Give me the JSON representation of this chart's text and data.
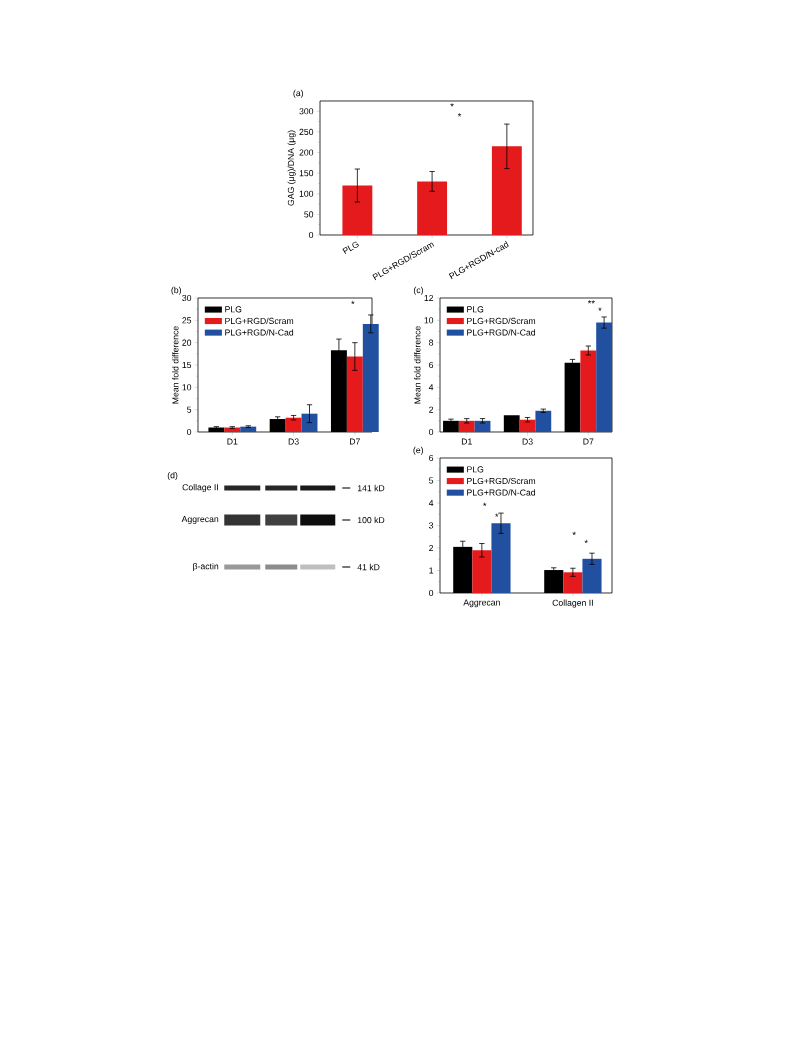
{
  "chart_data": [
    {
      "type": "bar",
      "title": "(a)",
      "ylabel": "GAG (μg)/DNA (μg)",
      "categories": [
        "PLG",
        "PLG+RGD/Scram",
        "PLG+RGD/N-cad"
      ],
      "values": [
        120,
        130,
        215
      ],
      "errors": [
        40,
        24,
        54
      ],
      "color": "#e41a1c",
      "ylim": [
        0,
        325
      ],
      "yticks": [
        0,
        50,
        100,
        150,
        200,
        250,
        300
      ],
      "annotations": [
        "*",
        "*"
      ]
    },
    {
      "type": "bar",
      "title": "(b)",
      "ylabel": "Mean fold difference",
      "categories": [
        "D1",
        "D3",
        "D7"
      ],
      "series": [
        {
          "name": "PLG",
          "color": "#000000",
          "values": [
            1.0,
            2.9,
            18.3
          ],
          "errors": [
            0.2,
            0.5,
            2.5
          ]
        },
        {
          "name": "PLG+RGD/Scram",
          "color": "#e41a1c",
          "values": [
            1.0,
            3.2,
            16.9
          ],
          "errors": [
            0.2,
            0.5,
            3.1
          ]
        },
        {
          "name": "PLG+RGD/N-Cad",
          "color": "#2150a0",
          "values": [
            1.2,
            4.1,
            24.2
          ],
          "errors": [
            0.2,
            2.0,
            2.0
          ]
        }
      ],
      "ylim": [
        0,
        30
      ],
      "yticks": [
        0,
        5,
        10,
        15,
        20,
        25,
        30
      ],
      "legend": "top left",
      "annotations": [
        "*"
      ]
    },
    {
      "type": "bar",
      "title": "(c)",
      "ylabel": "Mean fold difference",
      "categories": [
        "D1",
        "D3",
        "D7"
      ],
      "series": [
        {
          "name": "PLG",
          "color": "#000000",
          "values": [
            1.0,
            1.5,
            6.2
          ],
          "errors": [
            0.15,
            null,
            0.3
          ]
        },
        {
          "name": "PLG+RGD/Scram",
          "color": "#e41a1c",
          "values": [
            1.0,
            1.1,
            7.3
          ],
          "errors": [
            0.2,
            0.2,
            0.4
          ]
        },
        {
          "name": "PLG+RGD/N-Cad",
          "color": "#2150a0",
          "values": [
            1.0,
            1.9,
            9.8
          ],
          "errors": [
            0.2,
            0.15,
            0.5
          ]
        }
      ],
      "ylim": [
        0,
        12
      ],
      "yticks": [
        0,
        2,
        4,
        6,
        8,
        10,
        12
      ],
      "legend": "top left",
      "annotations": [
        "**",
        "*"
      ]
    },
    {
      "type": "other",
      "title": "(d)",
      "annotations": [
        "Collage II",
        "Aggrecan",
        "β-actin",
        "141 kD",
        "100 kD",
        "41 kD"
      ]
    },
    {
      "type": "bar",
      "title": "(e)",
      "categories": [
        "Aggrecan",
        "Collagen II"
      ],
      "series": [
        {
          "name": "PLG",
          "color": "#000000",
          "values": [
            2.05,
            1.02
          ],
          "errors": [
            0.25,
            0.1
          ]
        },
        {
          "name": "PLG+RGD/Scram",
          "color": "#e41a1c",
          "values": [
            1.9,
            0.92
          ],
          "errors": [
            0.3,
            0.18
          ]
        },
        {
          "name": "PLG+RGD/N-Cad",
          "color": "#2150a0",
          "values": [
            3.1,
            1.52
          ],
          "errors": [
            0.45,
            0.25
          ]
        }
      ],
      "ylim": [
        0,
        6
      ],
      "yticks": [
        0,
        1,
        2,
        3,
        4,
        5,
        6
      ],
      "legend": "top left",
      "annotations": [
        "*",
        "*",
        "*",
        "*"
      ]
    }
  ]
}
